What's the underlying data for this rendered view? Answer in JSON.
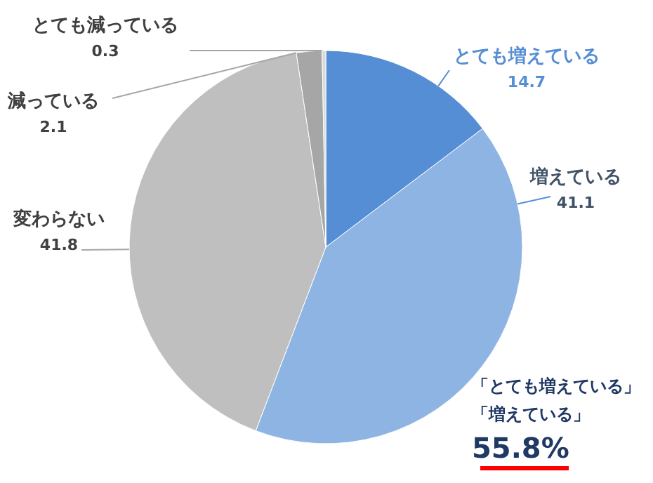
{
  "chart_data": {
    "type": "pie",
    "categories": [
      "とても増えている",
      "増えている",
      "変わらない",
      "減っている",
      "とても減っている"
    ],
    "values": [
      14.7,
      41.1,
      41.8,
      2.1,
      0.3
    ],
    "colors": [
      "#558ed5",
      "#8eb4e3",
      "#bfbfbf",
      "#a6a6a6",
      "#d9d9d9"
    ],
    "data_labels": true,
    "annotations": [
      "「とても増えている」",
      "「増えている」",
      "55.8%"
    ]
  }
}
